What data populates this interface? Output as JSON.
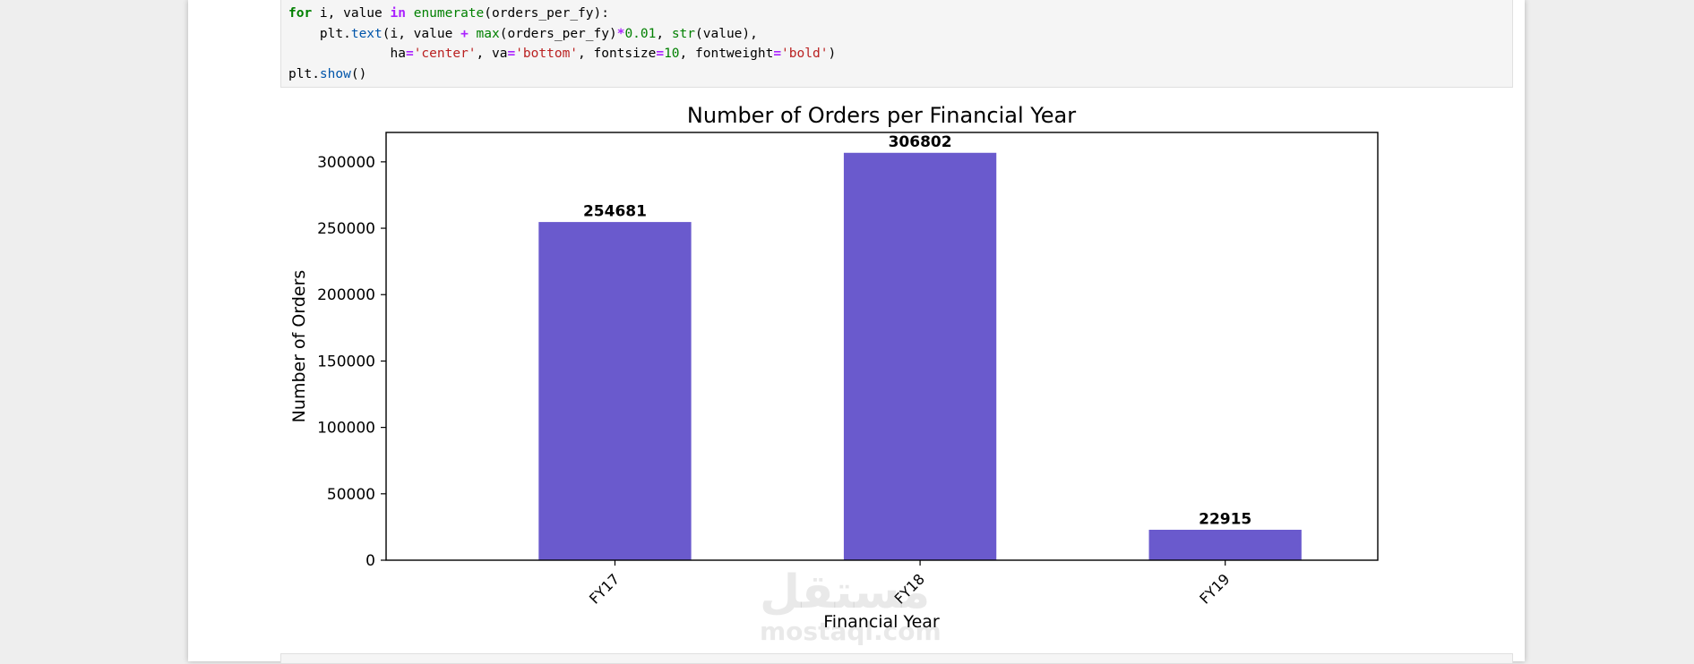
{
  "code_cell": {
    "lines": [
      "for i, value in enumerate(orders_per_fy):",
      "    plt.text(i, value + max(orders_per_fy)*0.01, str(value),",
      "             ha='center', va='bottom', fontsize=10, fontweight='bold')",
      "plt.show()"
    ]
  },
  "watermark": {
    "arabic": "مستقل",
    "latin": "mostaql.com"
  },
  "chart_data": {
    "type": "bar",
    "title": "Number of Orders per Financial Year",
    "xlabel": "Financial Year",
    "ylabel": "Number of Orders",
    "categories": [
      "FY17",
      "FY18",
      "FY19"
    ],
    "values": [
      254681,
      306802,
      22915
    ],
    "data_labels": [
      "254681",
      "306802",
      "22915"
    ],
    "ylim": [
      0,
      322142
    ],
    "yticks": [
      0,
      50000,
      100000,
      150000,
      200000,
      250000,
      300000
    ],
    "ytick_labels": [
      "0",
      "50000",
      "100000",
      "150000",
      "200000",
      "250000",
      "300000"
    ],
    "bar_color": "#6a5acd",
    "grid": false,
    "x_tick_rotation": 45
  }
}
